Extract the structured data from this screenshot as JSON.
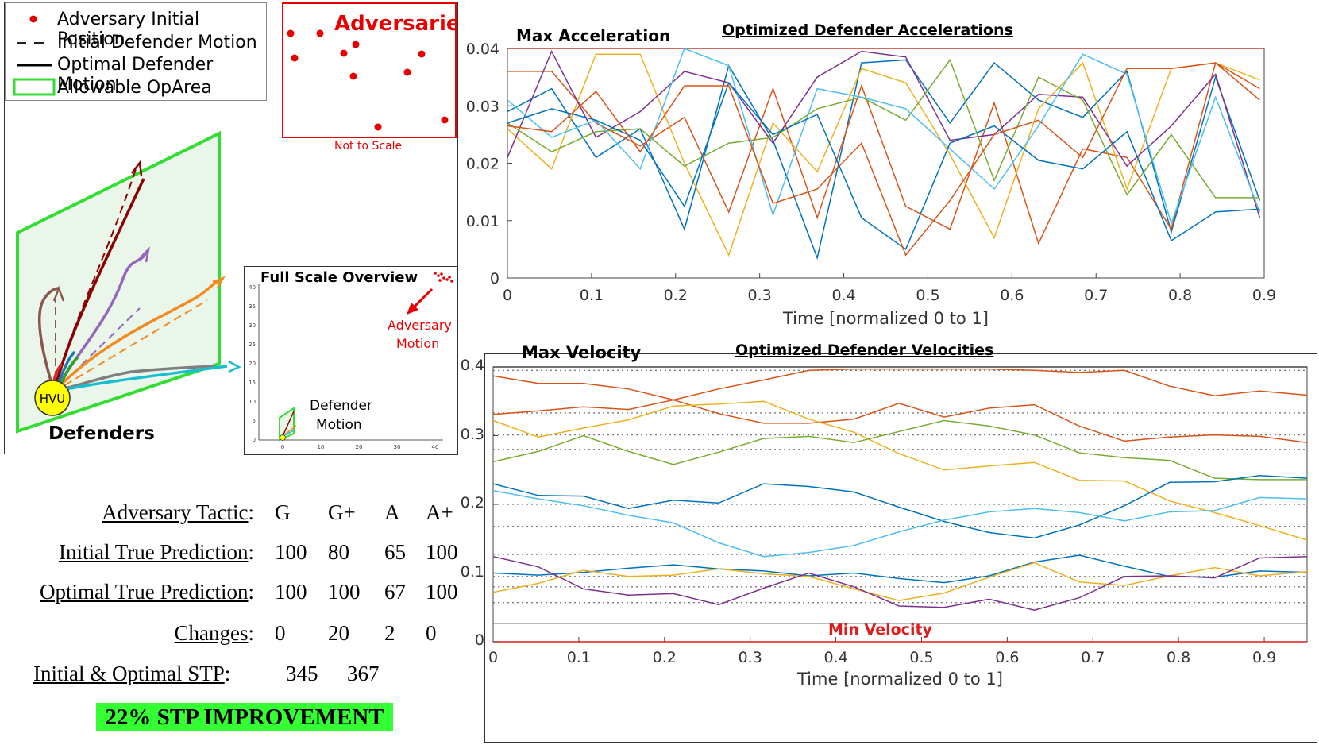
{
  "legend": {
    "items": [
      {
        "label": "Adversary Initial Position",
        "symbol": "red-dot"
      },
      {
        "label": "Initial Defender Motion",
        "symbol": "dashed-line"
      },
      {
        "label": "Optimal Defender Motion",
        "symbol": "solid-line"
      },
      {
        "label": "Allowable OpArea",
        "symbol": "green-rect"
      }
    ]
  },
  "adversary_inset": {
    "title": "Adversaries",
    "note": "Not to Scale"
  },
  "scene": {
    "hvu_label": "HVU",
    "defenders_label": "Defenders"
  },
  "overview": {
    "title": "Full Scale Overview",
    "adversary_label_line1": "Adversary",
    "adversary_label_line2": "Motion",
    "defender_label_line1": "Defender",
    "defender_label_line2": "Motion",
    "y_ticks": [
      "40",
      "35",
      "30",
      "25",
      "20",
      "15",
      "10",
      "5",
      "0"
    ],
    "x_ticks": [
      "0",
      "10",
      "20",
      "30",
      "40"
    ]
  },
  "table": {
    "rows": [
      {
        "label": "Adversary Tactic",
        "suffix": ":",
        "values": [
          "G",
          "G+",
          "A",
          "A+"
        ]
      },
      {
        "label": "Initial True Prediction",
        "suffix": ":",
        "values": [
          "100",
          "80",
          "65",
          "100"
        ]
      },
      {
        "label": "Optimal True Prediction",
        "suffix": ":",
        "values": [
          "100",
          "100",
          "67",
          "100"
        ]
      },
      {
        "label": "Changes",
        "suffix": ":",
        "values": [
          "0",
          "20",
          "2",
          "0"
        ]
      }
    ],
    "stp": {
      "label": "Initial & Optimal STP",
      "suffix": ":",
      "values": [
        "345",
        "367"
      ]
    },
    "banner": "22% STP IMPROVEMENT"
  },
  "chart_data": [
    {
      "type": "line",
      "title": "Optimized Defender Accelerations",
      "annotation": "Max Acceleration",
      "max_line": 0.04,
      "xlabel": "Time [normalized 0 to 1]",
      "ylabel": "",
      "xlim": [
        0,
        0.9
      ],
      "ylim": [
        0,
        0.04
      ],
      "x_ticks": [
        "0",
        "0.1",
        "0.2",
        "0.3",
        "0.4",
        "0.5",
        "0.6",
        "0.7",
        "0.8",
        "0.9"
      ],
      "y_ticks": [
        "0",
        "0.01",
        "0.02",
        "0.03",
        "0.04"
      ],
      "x": [
        0,
        0.0526,
        0.1053,
        0.1579,
        0.2105,
        0.2632,
        0.3158,
        0.3684,
        0.4211,
        0.4737,
        0.5263,
        0.5789,
        0.6316,
        0.6842,
        0.7368,
        0.7895,
        0.8421,
        0.8947
      ],
      "series": [
        {
          "name": "s1",
          "color": "#0072BD",
          "values": [
            0.029,
            0.033,
            0.021,
            0.026,
            0.0085,
            0.037,
            0.024,
            0.0035,
            0.0375,
            0.038,
            0.027,
            0.0375,
            0.031,
            0.028,
            0.036,
            0.008,
            0.035,
            0.0135
          ]
        },
        {
          "name": "s2",
          "color": "#D95319",
          "values": [
            0.036,
            0.036,
            0.027,
            0.023,
            0.028,
            0.0115,
            0.033,
            0.0105,
            0.0335,
            0.0125,
            0.0085,
            0.0305,
            0.006,
            0.0225,
            0.021,
            0.0085,
            0.0375,
            0.031
          ]
        },
        {
          "name": "s3",
          "color": "#EDB120",
          "values": [
            0.026,
            0.019,
            0.039,
            0.039,
            0.02,
            0.004,
            0.027,
            0.0185,
            0.0365,
            0.034,
            0.0215,
            0.007,
            0.0295,
            0.0375,
            0.0155,
            0.0365,
            0.0375,
            0.0345
          ]
        },
        {
          "name": "s4",
          "color": "#7E2F8E",
          "values": [
            0.021,
            0.0395,
            0.0245,
            0.029,
            0.036,
            0.034,
            0.0235,
            0.035,
            0.0395,
            0.0385,
            0.024,
            0.025,
            0.032,
            0.0315,
            0.0195,
            0.0265,
            0.0355,
            0.0105
          ]
        },
        {
          "name": "s5",
          "color": "#77AC30",
          "values": [
            0.027,
            0.022,
            0.0255,
            0.026,
            0.0195,
            0.0235,
            0.0245,
            0.0295,
            0.0315,
            0.0275,
            0.038,
            0.017,
            0.035,
            0.031,
            0.0145,
            0.025,
            0.014,
            0.014
          ]
        },
        {
          "name": "s6",
          "color": "#4DBEEE",
          "values": [
            0.031,
            0.0245,
            0.0275,
            0.019,
            0.04,
            0.037,
            0.011,
            0.033,
            0.0315,
            0.0295,
            0.0225,
            0.0155,
            0.0265,
            0.039,
            0.0355,
            0.0095,
            0.0315,
            0.0115
          ]
        },
        {
          "name": "s7",
          "color": "#0072BD",
          "values": [
            0.027,
            0.0295,
            0.0275,
            0.024,
            0.0125,
            0.034,
            0.025,
            0.0285,
            0.0105,
            0.005,
            0.0235,
            0.0265,
            0.0205,
            0.019,
            0.0255,
            0.0065,
            0.0115,
            0.012
          ]
        },
        {
          "name": "s8",
          "color": "#D95319",
          "values": [
            0.0265,
            0.0255,
            0.0325,
            0.022,
            0.0335,
            0.0335,
            0.013,
            0.0155,
            0.0235,
            0.004,
            0.0135,
            0.025,
            0.0275,
            0.021,
            0.0365,
            0.0365,
            0.0375,
            0.033
          ]
        }
      ]
    },
    {
      "type": "line",
      "title": "Optimized Defender Velocities",
      "annotation_max": "Max Velocity",
      "annotation_min": "Min Velocity",
      "max_line": 0.4,
      "min_line": 0.027,
      "xlabel": "Time [normalized 0 to 1]",
      "ylabel": "",
      "xlim": [
        0,
        0.95
      ],
      "ylim": [
        0,
        0.4
      ],
      "x_ticks": [
        "0",
        "0.1",
        "0.2",
        "0.3",
        "0.4",
        "0.5",
        "0.6",
        "0.7",
        "0.8",
        "0.9"
      ],
      "y_ticks": [
        "0",
        "0.1",
        "0.2",
        "0.3",
        "0.4"
      ],
      "dotted_levels": [
        0.395,
        0.333,
        0.301,
        0.28,
        0.2,
        0.168,
        0.127,
        0.095,
        0.08,
        0.057
      ],
      "x": [
        0,
        0.0526,
        0.1053,
        0.1579,
        0.2105,
        0.2632,
        0.3158,
        0.3684,
        0.4211,
        0.4737,
        0.5263,
        0.5789,
        0.6316,
        0.6842,
        0.7368,
        0.7895,
        0.8421,
        0.8947,
        0.95
      ],
      "series": [
        {
          "name": "v1",
          "color": "#D95319",
          "values": [
            0.387,
            0.376,
            0.376,
            0.368,
            0.352,
            0.368,
            0.381,
            0.395,
            0.397,
            0.397,
            0.397,
            0.397,
            0.395,
            0.392,
            0.395,
            0.372,
            0.358,
            0.365,
            0.359
          ]
        },
        {
          "name": "v2",
          "color": "#D95319",
          "values": [
            0.331,
            0.336,
            0.342,
            0.338,
            0.352,
            0.332,
            0.318,
            0.318,
            0.324,
            0.347,
            0.327,
            0.34,
            0.345,
            0.314,
            0.292,
            0.298,
            0.301,
            0.299,
            0.29
          ]
        },
        {
          "name": "v3",
          "color": "#EDB120",
          "values": [
            0.322,
            0.298,
            0.311,
            0.323,
            0.343,
            0.346,
            0.35,
            0.324,
            0.305,
            0.274,
            0.25,
            0.256,
            0.261,
            0.235,
            0.234,
            0.205,
            0.188,
            0.169,
            0.148
          ]
        },
        {
          "name": "v4",
          "color": "#77AC30",
          "values": [
            0.262,
            0.277,
            0.3,
            0.277,
            0.258,
            0.276,
            0.296,
            0.299,
            0.29,
            0.306,
            0.322,
            0.314,
            0.301,
            0.275,
            0.268,
            0.264,
            0.238,
            0.236,
            0.236
          ]
        },
        {
          "name": "v5",
          "color": "#0072BD",
          "values": [
            0.23,
            0.213,
            0.212,
            0.194,
            0.206,
            0.202,
            0.23,
            0.226,
            0.218,
            0.196,
            0.175,
            0.159,
            0.151,
            0.17,
            0.198,
            0.232,
            0.233,
            0.242,
            0.238
          ]
        },
        {
          "name": "v6",
          "color": "#4DBEEE",
          "values": [
            0.22,
            0.208,
            0.198,
            0.184,
            0.173,
            0.144,
            0.124,
            0.13,
            0.14,
            0.16,
            0.177,
            0.189,
            0.194,
            0.188,
            0.176,
            0.189,
            0.191,
            0.21,
            0.208
          ]
        },
        {
          "name": "v7",
          "color": "#0072BD",
          "values": [
            0.1,
            0.097,
            0.101,
            0.107,
            0.112,
            0.106,
            0.103,
            0.096,
            0.1,
            0.092,
            0.086,
            0.096,
            0.116,
            0.126,
            0.11,
            0.095,
            0.094,
            0.103,
            0.101
          ]
        },
        {
          "name": "v8",
          "color": "#EDB120",
          "values": [
            0.072,
            0.085,
            0.104,
            0.095,
            0.097,
            0.106,
            0.099,
            0.095,
            0.077,
            0.06,
            0.071,
            0.094,
            0.115,
            0.087,
            0.082,
            0.096,
            0.108,
            0.096,
            0.102
          ]
        },
        {
          "name": "v9",
          "color": "#7E2F8E",
          "values": [
            0.124,
            0.109,
            0.077,
            0.068,
            0.07,
            0.054,
            0.078,
            0.1,
            0.08,
            0.052,
            0.05,
            0.062,
            0.046,
            0.064,
            0.095,
            0.096,
            0.093,
            0.122,
            0.124
          ]
        }
      ]
    }
  ]
}
